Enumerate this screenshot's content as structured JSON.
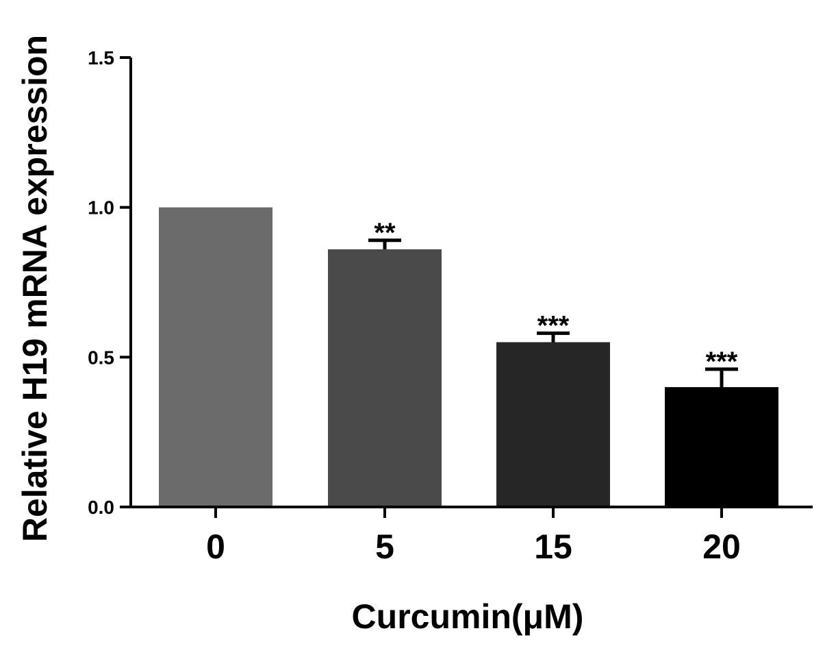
{
  "chart_data": {
    "type": "bar",
    "xlabel": "Curcumin(μM)",
    "ylabel": "Relative H19 mRNA expression",
    "categories": [
      "0",
      "5",
      "15",
      "20"
    ],
    "values": [
      1.0,
      0.86,
      0.55,
      0.4
    ],
    "errors": [
      0.0,
      0.03,
      0.03,
      0.06
    ],
    "significance": [
      "",
      "**",
      "***",
      "***"
    ],
    "bar_colors": [
      "#6b6b6b",
      "#4a4a4a",
      "#262626",
      "#000000"
    ],
    "ylim": [
      0,
      1.5
    ],
    "yticks": [
      0.0,
      0.5,
      1.0,
      1.5
    ],
    "ytick_labels": [
      "0.0",
      "0.5",
      "1.0",
      "1.5"
    ],
    "grid": false,
    "legend": "none"
  }
}
